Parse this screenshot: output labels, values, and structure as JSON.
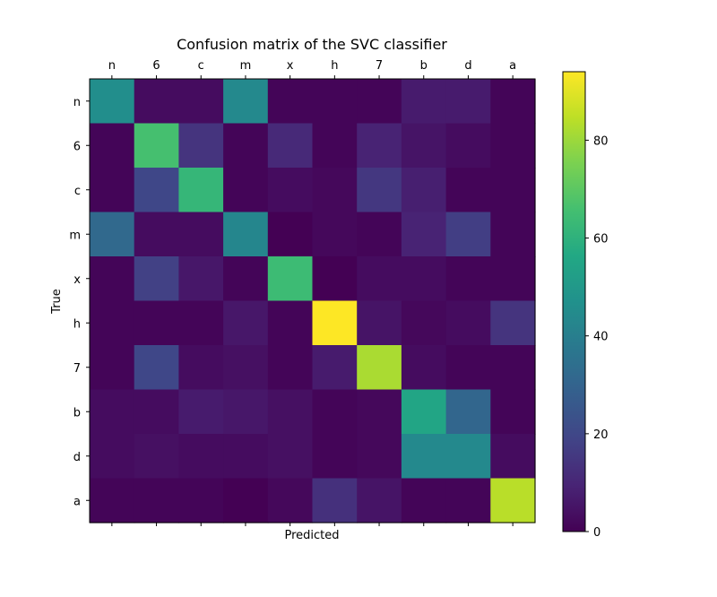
{
  "chart_data": {
    "type": "heatmap",
    "title": "Confusion matrix of the SVC classifier",
    "xlabel": "Predicted",
    "ylabel": "True",
    "x_categories": [
      "n",
      "6",
      "c",
      "m",
      "x",
      "h",
      "7",
      "b",
      "d",
      "a"
    ],
    "y_categories": [
      "n",
      "6",
      "c",
      "m",
      "x",
      "h",
      "7",
      "b",
      "d",
      "a"
    ],
    "colormap": "viridis",
    "vmin": 0,
    "vmax": 94,
    "colorbar_ticks": [
      0,
      20,
      40,
      60,
      80
    ],
    "values": [
      [
        46,
        3,
        3,
        44,
        1,
        1,
        1,
        7,
        7,
        1
      ],
      [
        1,
        66,
        14,
        1,
        11,
        1,
        9,
        5,
        3,
        1
      ],
      [
        1,
        20,
        62,
        1,
        3,
        2,
        15,
        8,
        1,
        1
      ],
      [
        32,
        3,
        3,
        43,
        0,
        2,
        1,
        9,
        17,
        1
      ],
      [
        1,
        18,
        6,
        1,
        64,
        0,
        3,
        3,
        1,
        1
      ],
      [
        1,
        1,
        1,
        6,
        1,
        94,
        5,
        2,
        3,
        14
      ],
      [
        1,
        20,
        3,
        4,
        1,
        7,
        82,
        3,
        1,
        1
      ],
      [
        3,
        3,
        7,
        6,
        4,
        1,
        2,
        55,
        31,
        1
      ],
      [
        3,
        4,
        3,
        3,
        4,
        1,
        2,
        44,
        44,
        3
      ],
      [
        1,
        1,
        1,
        0,
        2,
        13,
        5,
        1,
        1,
        84
      ]
    ]
  }
}
